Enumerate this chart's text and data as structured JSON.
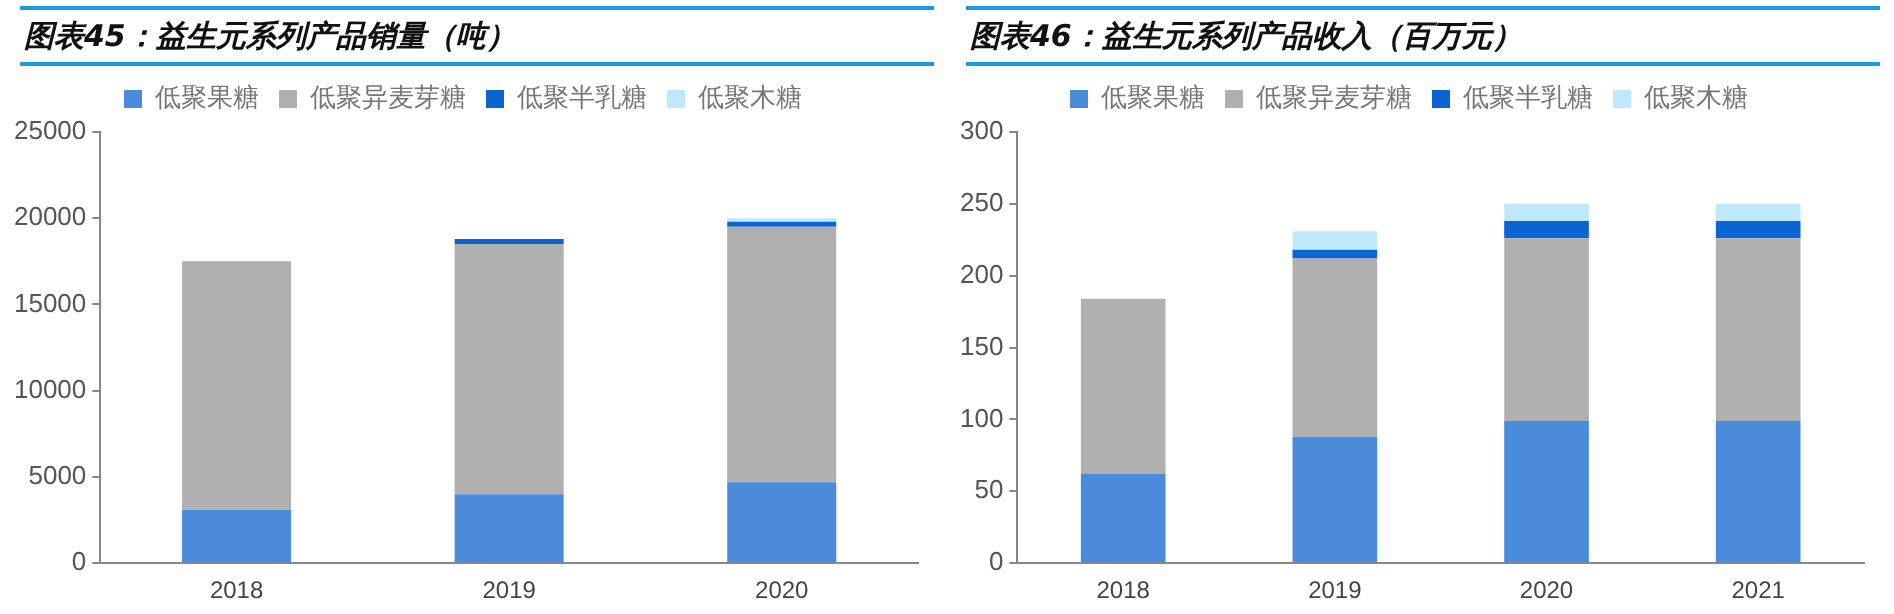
{
  "chart_data": [
    {
      "type": "bar",
      "title": "图表45：益生元系列产品销量（吨）",
      "stacked": true,
      "legend": "top",
      "grid": false,
      "categories": [
        "2018",
        "2019",
        "2020"
      ],
      "ylim": [
        0,
        25000
      ],
      "yticks": [
        0,
        5000,
        10000,
        15000,
        20000,
        25000
      ],
      "series": [
        {
          "name": "低聚果糖",
          "color": "#4a8bdb",
          "values": [
            3100,
            4000,
            4700
          ]
        },
        {
          "name": "低聚异麦芽糖",
          "color": "#b0b0b0",
          "values": [
            14400,
            14500,
            14800
          ]
        },
        {
          "name": "低聚半乳糖",
          "color": "#0a64d2",
          "values": [
            0,
            300,
            300
          ]
        },
        {
          "name": "低聚木糖",
          "color": "#bfe9fb",
          "values": [
            0,
            0,
            200
          ]
        }
      ]
    },
    {
      "type": "bar",
      "title": "图表46：益生元系列产品收入（百万元）",
      "stacked": true,
      "legend": "top",
      "grid": false,
      "categories": [
        "2018",
        "2019",
        "2020",
        "2021"
      ],
      "ylim": [
        0,
        300
      ],
      "yticks": [
        0,
        50,
        100,
        150,
        200,
        250,
        300
      ],
      "series": [
        {
          "name": "低聚果糖",
          "color": "#4a8bdb",
          "values": [
            62,
            88,
            99,
            99
          ]
        },
        {
          "name": "低聚异麦芽糖",
          "color": "#b0b0b0",
          "values": [
            122,
            124,
            127,
            127
          ]
        },
        {
          "name": "低聚半乳糖",
          "color": "#0a64d2",
          "values": [
            0,
            6,
            12,
            12
          ]
        },
        {
          "name": "低聚木糖",
          "color": "#bfe9fb",
          "values": [
            0,
            13,
            12,
            12
          ]
        }
      ]
    }
  ]
}
